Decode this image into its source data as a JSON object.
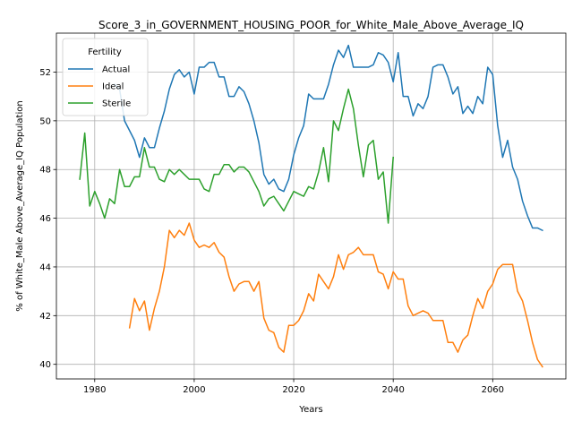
{
  "chart_data": {
    "type": "line",
    "title": "Score_3_in_GOVERNMENT_HOUSING_POOR_for_White_Male_Above_Average_IQ",
    "xlabel": "Years",
    "ylabel": "% of White_Male Above_Average_IQ Population",
    "xlim": [
      1972.3,
      2074.7
    ],
    "ylim": [
      39.4,
      53.6
    ],
    "xticks": [
      1980,
      2000,
      2020,
      2040,
      2060
    ],
    "yticks": [
      40,
      42,
      44,
      46,
      48,
      50,
      52
    ],
    "grid": true,
    "legend": {
      "title": "Fertility",
      "placement": "top-left"
    },
    "series": [
      {
        "name": "Actual",
        "color": "#1f77b4",
        "x": [
          1977,
          1978,
          1979,
          1980,
          1981,
          1982,
          1983,
          1984,
          1985,
          1986,
          1987,
          1988,
          1989,
          1990,
          1991,
          1992,
          1993,
          1994,
          1995,
          1996,
          1997,
          1998,
          1999,
          2000,
          2001,
          2002,
          2003,
          2004,
          2005,
          2006,
          2007,
          2008,
          2009,
          2010,
          2011,
          2012,
          2013,
          2014,
          2015,
          2016,
          2017,
          2018,
          2019,
          2020,
          2021,
          2022,
          2023,
          2024,
          2025,
          2026,
          2027,
          2028,
          2029,
          2030,
          2031,
          2032,
          2033,
          2034,
          2035,
          2036,
          2037,
          2038,
          2039,
          2040,
          2041,
          2042,
          2043,
          2044,
          2045,
          2046,
          2047,
          2048,
          2049,
          2050,
          2051,
          2052,
          2053,
          2054,
          2055,
          2056,
          2057,
          2058,
          2059,
          2060,
          2061,
          2062,
          2063,
          2064,
          2065,
          2066,
          2067,
          2068,
          2069,
          2070
        ],
        "values": [
          null,
          null,
          null,
          null,
          null,
          null,
          null,
          51.5,
          51.3,
          50.0,
          49.6,
          49.2,
          48.5,
          49.3,
          48.9,
          48.9,
          49.7,
          50.4,
          51.3,
          51.9,
          52.1,
          51.8,
          52.0,
          51.1,
          52.2,
          52.2,
          52.4,
          52.4,
          51.8,
          51.8,
          51.0,
          51.0,
          51.4,
          51.2,
          50.7,
          50.0,
          49.1,
          47.8,
          47.4,
          47.6,
          47.2,
          47.1,
          47.6,
          48.6,
          49.3,
          49.8,
          51.1,
          50.9,
          50.9,
          50.9,
          51.5,
          52.3,
          52.9,
          52.6,
          53.1,
          52.2,
          52.2,
          52.2,
          52.2,
          52.3,
          52.8,
          52.7,
          52.4,
          51.6,
          52.8,
          51.0,
          51.0,
          50.2,
          50.7,
          50.5,
          51.0,
          52.2,
          52.3,
          52.3,
          51.8,
          51.1,
          51.4,
          50.3,
          50.6,
          50.3,
          51.0,
          50.7,
          52.2,
          51.9,
          49.8,
          48.5,
          49.2,
          48.1,
          47.6,
          46.7,
          46.1,
          45.6,
          45.6,
          45.5
        ]
      },
      {
        "name": "Ideal",
        "color": "#ff7f0e",
        "x": [
          1977,
          1978,
          1979,
          1980,
          1981,
          1982,
          1983,
          1984,
          1985,
          1986,
          1987,
          1988,
          1989,
          1990,
          1991,
          1992,
          1993,
          1994,
          1995,
          1996,
          1997,
          1998,
          1999,
          2000,
          2001,
          2002,
          2003,
          2004,
          2005,
          2006,
          2007,
          2008,
          2009,
          2010,
          2011,
          2012,
          2013,
          2014,
          2015,
          2016,
          2017,
          2018,
          2019,
          2020,
          2021,
          2022,
          2023,
          2024,
          2025,
          2026,
          2027,
          2028,
          2029,
          2030,
          2031,
          2032,
          2033,
          2034,
          2035,
          2036,
          2037,
          2038,
          2039,
          2040,
          2041,
          2042,
          2043,
          2044,
          2045,
          2046,
          2047,
          2048,
          2049,
          2050,
          2051,
          2052,
          2053,
          2054,
          2055,
          2056,
          2057,
          2058,
          2059,
          2060,
          2061,
          2062,
          2063,
          2064,
          2065,
          2066,
          2067,
          2068,
          2069,
          2070
        ],
        "values": [
          null,
          null,
          null,
          null,
          null,
          null,
          null,
          null,
          null,
          null,
          41.5,
          42.7,
          42.2,
          42.6,
          41.4,
          42.3,
          43.0,
          44.0,
          45.5,
          45.2,
          45.5,
          45.3,
          45.8,
          45.1,
          44.8,
          44.9,
          44.8,
          45.0,
          44.6,
          44.4,
          43.6,
          43.0,
          43.3,
          43.4,
          43.4,
          43.0,
          43.4,
          41.9,
          41.4,
          41.3,
          40.7,
          40.5,
          41.6,
          41.6,
          41.8,
          42.2,
          42.9,
          42.6,
          43.7,
          43.4,
          43.1,
          43.6,
          44.5,
          43.9,
          44.5,
          44.6,
          44.8,
          44.5,
          44.5,
          44.5,
          43.8,
          43.7,
          43.1,
          43.8,
          43.5,
          43.5,
          42.4,
          42.0,
          42.1,
          42.2,
          42.1,
          41.8,
          41.8,
          41.8,
          40.9,
          40.9,
          40.5,
          41.0,
          41.2,
          42.0,
          42.7,
          42.3,
          43.0,
          43.3,
          43.9,
          44.1,
          44.1,
          44.1,
          43.0,
          42.6,
          41.8,
          40.9,
          40.2,
          39.9
        ]
      },
      {
        "name": "Sterile",
        "color": "#2ca02c",
        "x": [
          1977,
          1978,
          1979,
          1980,
          1981,
          1982,
          1983,
          1984,
          1985,
          1986,
          1987,
          1988,
          1989,
          1990,
          1991,
          1992,
          1993,
          1994,
          1995,
          1996,
          1997,
          1998,
          1999,
          2000,
          2001,
          2002,
          2003,
          2004,
          2005,
          2006,
          2007,
          2008,
          2009,
          2010,
          2011,
          2012,
          2013,
          2014,
          2015,
          2016,
          2017,
          2018,
          2019,
          2020,
          2021,
          2022,
          2023,
          2024,
          2025,
          2026,
          2027,
          2028,
          2029,
          2030,
          2031,
          2032,
          2033,
          2034,
          2035,
          2036,
          2037,
          2038,
          2039,
          2040
        ],
        "values": [
          47.6,
          49.5,
          46.5,
          47.1,
          46.6,
          46.0,
          46.8,
          46.6,
          48.0,
          47.3,
          47.3,
          47.7,
          47.7,
          48.9,
          48.1,
          48.1,
          47.6,
          47.5,
          48.0,
          47.8,
          48.0,
          47.8,
          47.6,
          47.6,
          47.6,
          47.2,
          47.1,
          47.8,
          47.8,
          48.2,
          48.2,
          47.9,
          48.1,
          48.1,
          47.9,
          47.5,
          47.1,
          46.5,
          46.8,
          46.9,
          46.6,
          46.3,
          46.7,
          47.1,
          47.0,
          46.9,
          47.3,
          47.2,
          47.9,
          48.9,
          47.5,
          50.0,
          49.6,
          50.5,
          51.3,
          50.5,
          49.0,
          47.7,
          49.0,
          49.2,
          47.6,
          47.9,
          45.8,
          48.5
        ]
      }
    ]
  }
}
